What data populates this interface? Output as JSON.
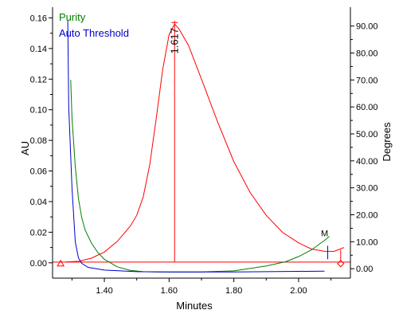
{
  "chart_data": {
    "type": "line",
    "xlabel": "Minutes",
    "ylabel_left": "AU",
    "ylabel_right": "Degrees",
    "xlim": [
      1.24,
      2.16
    ],
    "ylim_left": [
      -0.01,
      0.167
    ],
    "ylim_right": [
      -3.5,
      97
    ],
    "x_ticks": [
      "1.40",
      "1.60",
      "1.80",
      "2.00"
    ],
    "x_tick_values": [
      1.4,
      1.6,
      1.8,
      2.0
    ],
    "y_left_ticks": [
      "0.00",
      "0.02",
      "0.04",
      "0.06",
      "0.08",
      "0.10",
      "0.12",
      "0.14",
      "0.16"
    ],
    "y_left_tick_values": [
      0,
      0.02,
      0.04,
      0.06,
      0.08,
      0.1,
      0.12,
      0.14,
      0.16
    ],
    "y_right_ticks": [
      "0.00",
      "10.00",
      "20.00",
      "30.00",
      "40.00",
      "50.00",
      "60.00",
      "70.00",
      "80.00",
      "90.00"
    ],
    "y_right_tick_values": [
      0,
      10,
      20,
      30,
      40,
      50,
      60,
      70,
      80,
      90
    ],
    "peak_label": "1.617",
    "peak_x": 1.617,
    "marker_label": "M",
    "marker_x": 2.09,
    "series": [
      {
        "name": "",
        "axis": "left",
        "color": "#ff0000",
        "x": [
          1.28,
          1.32,
          1.36,
          1.4,
          1.44,
          1.48,
          1.5,
          1.52,
          1.54,
          1.56,
          1.58,
          1.6,
          1.617,
          1.63,
          1.66,
          1.7,
          1.75,
          1.8,
          1.85,
          1.9,
          1.95,
          2.0,
          2.04,
          2.08,
          2.11,
          2.14
        ],
        "values": [
          0.0005,
          0.001,
          0.003,
          0.007,
          0.014,
          0.024,
          0.031,
          0.043,
          0.064,
          0.094,
          0.126,
          0.149,
          0.156,
          0.153,
          0.142,
          0.12,
          0.092,
          0.066,
          0.046,
          0.031,
          0.02,
          0.013,
          0.009,
          0.0075,
          0.0075,
          0.01
        ]
      },
      {
        "name": "Purity",
        "axis": "right",
        "color": "#008000",
        "x": [
          1.296,
          1.3,
          1.31,
          1.32,
          1.33,
          1.34,
          1.36,
          1.38,
          1.4,
          1.44,
          1.48,
          1.52,
          1.56,
          1.6,
          1.7,
          1.8,
          1.9,
          1.96,
          2.0,
          2.04,
          2.08,
          2.095
        ],
        "values": [
          70,
          56,
          38,
          26,
          19,
          14.5,
          9.5,
          6,
          3.5,
          0.7,
          -0.6,
          -1.1,
          -1.2,
          -1.2,
          -1.2,
          -0.8,
          1,
          2.6,
          4.5,
          7,
          10.5,
          12
        ]
      },
      {
        "name": "Auto Threshold",
        "axis": "right",
        "color": "#0000cc",
        "x": [
          1.287,
          1.29,
          1.3,
          1.31,
          1.32,
          1.33,
          1.35,
          1.4,
          1.5,
          1.6,
          1.7,
          1.8,
          1.9,
          2.0,
          2.08
        ],
        "values": [
          92,
          60,
          30,
          10,
          4,
          2,
          0.5,
          -0.5,
          -1.1,
          -1.2,
          -1.2,
          -1.2,
          -1.1,
          -1.0,
          -0.9
        ]
      }
    ]
  }
}
